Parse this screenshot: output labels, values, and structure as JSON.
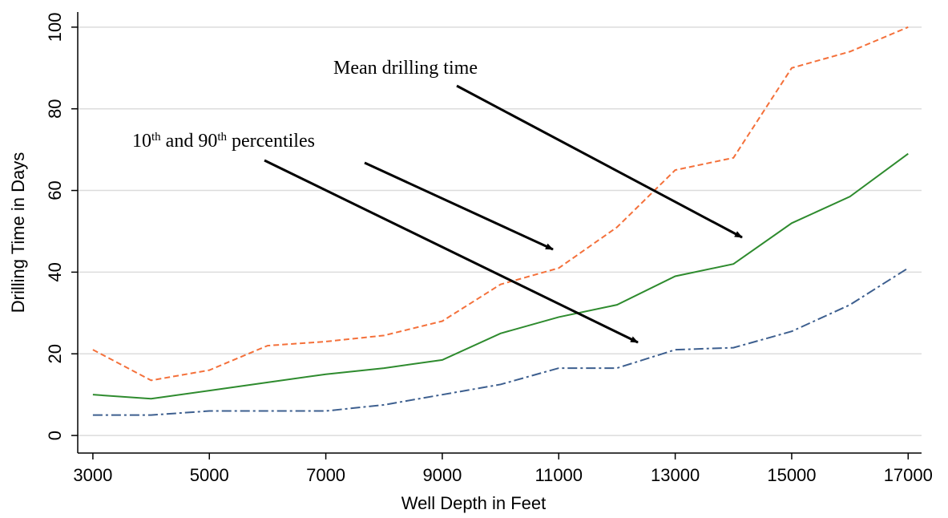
{
  "chart_data": {
    "type": "line",
    "x": [
      3000,
      4000,
      5000,
      6000,
      7000,
      8000,
      9000,
      10000,
      11000,
      12000,
      13000,
      14000,
      15000,
      16000,
      17000
    ],
    "series": [
      {
        "color": "#f4703a",
        "style": "dash",
        "values": [
          21,
          13.5,
          16,
          22,
          23,
          24.5,
          28,
          37,
          41,
          51,
          65,
          68,
          90,
          94,
          100
        ]
      },
      {
        "color": "#2e8b2e",
        "style": "solid",
        "values": [
          10,
          9,
          11,
          13,
          15,
          16.5,
          18.5,
          25,
          29,
          32,
          39,
          42,
          52,
          58.5,
          69
        ]
      },
      {
        "color": "#3d5f8f",
        "style": "dashdot",
        "values": [
          5,
          5,
          6,
          6,
          6,
          7.5,
          10,
          12.5,
          16.5,
          16.5,
          21,
          21.5,
          25.5,
          32,
          41
        ]
      }
    ],
    "xlim": [
      2740,
      17230
    ],
    "xticks": [
      3000,
      5000,
      7000,
      9000,
      11000,
      13000,
      15000,
      17000
    ],
    "ylim": [
      -4.3,
      103.7
    ],
    "yticks": [
      0,
      20,
      40,
      60,
      80,
      100
    ],
    "grid": true,
    "x_label": "Well Depth in Feet",
    "y_label": "Drilling Time in Days",
    "annotations": [
      {
        "parts": [
          "Mean drilling time"
        ]
      },
      {
        "parts": [
          "10",
          "th",
          " and 90",
          "th",
          " percentiles"
        ]
      }
    ]
  }
}
